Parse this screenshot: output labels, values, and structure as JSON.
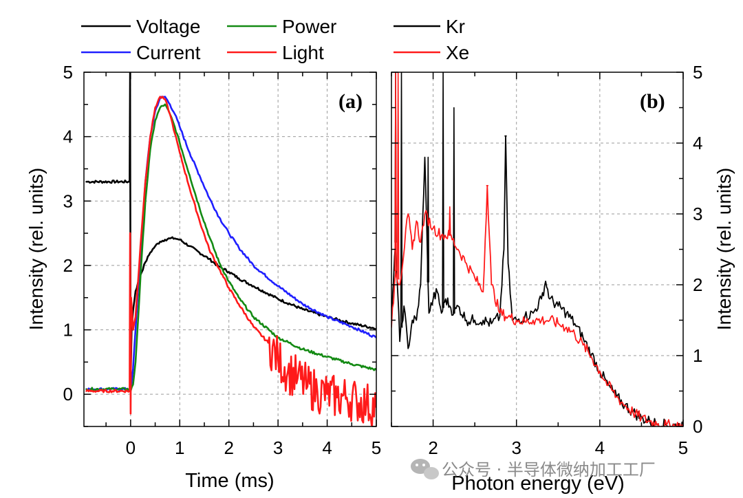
{
  "legend": {
    "left": [
      {
        "label": "Voltage",
        "color": "#000000"
      },
      {
        "label": "Power",
        "color": "#138a13"
      },
      {
        "label": "Current",
        "color": "#1f1fff"
      },
      {
        "label": "Light",
        "color": "#ff1a1a"
      }
    ],
    "right": [
      {
        "label": "Kr",
        "color": "#000000"
      },
      {
        "label": "Xe",
        "color": "#ff1a1a"
      }
    ]
  },
  "watermark": {
    "text": "公众号 · 半导体微纳加工工厂"
  },
  "chart_data": [
    {
      "type": "line",
      "panel_label": "(a)",
      "xlabel": "Time (ms)",
      "ylabel": "Intensity (rel. units)",
      "xlim": [
        -0.95,
        5
      ],
      "ylim": [
        -0.5,
        5
      ],
      "xticks": [
        0,
        1,
        2,
        3,
        4,
        5
      ],
      "yticks": [
        0,
        1,
        2,
        3,
        4,
        5
      ],
      "grid": true,
      "series": [
        {
          "name": "Voltage",
          "color": "#000000",
          "x": [
            -0.9,
            -0.02,
            -0.01,
            0.0,
            0.02,
            0.05,
            0.1,
            0.2,
            0.3,
            0.4,
            0.5,
            0.6,
            0.7,
            0.8,
            0.9,
            1.0,
            1.2,
            1.4,
            1.6,
            1.8,
            2.0,
            2.2,
            2.5,
            3.0,
            3.5,
            4.0,
            4.5,
            5.0
          ],
          "y": [
            3.3,
            3.3,
            5.0,
            0.2,
            1.0,
            1.3,
            1.6,
            1.85,
            2.05,
            2.2,
            2.3,
            2.37,
            2.4,
            2.42,
            2.42,
            2.4,
            2.3,
            2.2,
            2.1,
            1.98,
            1.9,
            1.8,
            1.68,
            1.48,
            1.32,
            1.2,
            1.1,
            1.02
          ]
        },
        {
          "name": "Current",
          "color": "#1f1fff",
          "x": [
            -0.9,
            -0.02,
            0.0,
            0.05,
            0.1,
            0.2,
            0.3,
            0.4,
            0.5,
            0.6,
            0.7,
            0.8,
            0.9,
            1.0,
            1.2,
            1.4,
            1.6,
            1.8,
            2.0,
            2.2,
            2.5,
            3.0,
            3.5,
            4.0,
            4.5,
            5.0
          ],
          "y": [
            0.08,
            0.08,
            0.05,
            0.4,
            1.0,
            2.2,
            3.3,
            4.0,
            4.4,
            4.6,
            4.62,
            4.5,
            4.35,
            4.15,
            3.75,
            3.4,
            3.05,
            2.75,
            2.5,
            2.28,
            2.0,
            1.68,
            1.4,
            1.2,
            1.05,
            0.88
          ]
        },
        {
          "name": "Power",
          "color": "#138a13",
          "x": [
            -0.9,
            -0.02,
            0.0,
            0.05,
            0.1,
            0.2,
            0.3,
            0.4,
            0.5,
            0.6,
            0.7,
            0.8,
            0.9,
            1.0,
            1.2,
            1.4,
            1.6,
            1.8,
            2.0,
            2.2,
            2.5,
            3.0,
            3.5,
            4.0,
            4.5,
            5.0
          ],
          "y": [
            0.08,
            0.08,
            0.05,
            0.15,
            0.5,
            1.8,
            3.0,
            3.8,
            4.25,
            4.45,
            4.5,
            4.35,
            4.15,
            3.9,
            3.4,
            2.9,
            2.45,
            2.05,
            1.75,
            1.5,
            1.2,
            0.88,
            0.7,
            0.58,
            0.47,
            0.38
          ]
        },
        {
          "name": "Light",
          "color": "#ff1a1a",
          "x": [
            -0.9,
            -0.02,
            -0.01,
            0.0,
            0.01,
            0.05,
            0.1,
            0.2,
            0.3,
            0.4,
            0.5,
            0.6,
            0.7,
            0.8,
            0.9,
            1.0,
            1.2,
            1.4,
            1.6,
            1.8,
            2.0,
            2.2,
            2.5,
            2.8,
            3.0,
            3.2,
            3.4,
            3.6,
            3.8,
            4.0,
            4.2,
            4.4,
            4.6,
            4.8,
            5.0
          ],
          "y": [
            0.05,
            0.05,
            2.5,
            -0.3,
            1.5,
            1.0,
            1.2,
            2.3,
            3.3,
            4.0,
            4.45,
            4.62,
            4.58,
            4.35,
            4.05,
            3.75,
            3.2,
            2.7,
            2.25,
            1.95,
            1.65,
            1.4,
            1.05,
            0.8,
            0.55,
            0.35,
            0.25,
            0.12,
            0.05,
            0.0,
            -0.05,
            -0.05,
            -0.1,
            -0.15,
            -0.2
          ],
          "noise_from_x": 2.8,
          "noise_amplitude": 0.35
        }
      ]
    },
    {
      "type": "line",
      "panel_label": "(b)",
      "xlabel": "Photon energy (eV)",
      "ylabel": "Intensity (rel. units)",
      "xlim": [
        1.5,
        5
      ],
      "ylim": [
        0,
        5
      ],
      "xticks": [
        2,
        3,
        4,
        5
      ],
      "yticks": [
        0,
        1,
        2,
        3,
        4,
        5
      ],
      "grid": true,
      "series": [
        {
          "name": "Kr",
          "color": "#000000",
          "x": [
            1.5,
            1.55,
            1.6,
            1.65,
            1.7,
            1.75,
            1.8,
            1.85,
            1.9,
            1.95,
            2.0,
            2.05,
            2.1,
            2.15,
            2.2,
            2.25,
            2.3,
            2.4,
            2.5,
            2.6,
            2.7,
            2.8,
            2.85,
            2.87,
            2.9,
            2.95,
            3.0,
            3.1,
            3.2,
            3.3,
            3.35,
            3.4,
            3.5,
            3.6,
            3.7,
            3.8,
            3.9,
            4.0,
            4.1,
            4.2,
            4.3,
            4.4,
            4.5,
            4.6,
            4.7,
            4.8,
            5.0
          ],
          "y": [
            1.5,
            2.6,
            1.2,
            1.7,
            1.1,
            1.5,
            1.5,
            2.0,
            3.8,
            1.6,
            1.8,
            1.9,
            1.6,
            1.8,
            1.7,
            1.6,
            1.7,
            1.5,
            1.5,
            1.5,
            1.45,
            1.55,
            2.5,
            4.1,
            2.3,
            1.5,
            1.5,
            1.55,
            1.6,
            1.8,
            2.05,
            1.8,
            1.7,
            1.6,
            1.45,
            1.25,
            1.02,
            0.78,
            0.58,
            0.42,
            0.3,
            0.2,
            0.12,
            0.07,
            0.04,
            0.02,
            0.0
          ],
          "spikes": [
            [
              1.55,
              5.0
            ],
            [
              1.62,
              5.0
            ],
            [
              2.12,
              5.0
            ],
            [
              2.25,
              4.5
            ],
            [
              2.87,
              4.1
            ],
            [
              1.94,
              3.8
            ]
          ]
        },
        {
          "name": "Xe",
          "color": "#ff1a1a",
          "x": [
            1.5,
            1.55,
            1.6,
            1.7,
            1.75,
            1.8,
            1.85,
            1.9,
            2.0,
            2.1,
            2.2,
            2.3,
            2.4,
            2.5,
            2.6,
            2.65,
            2.7,
            2.8,
            2.9,
            3.0,
            3.1,
            3.2,
            3.3,
            3.4,
            3.5,
            3.6,
            3.7,
            3.8,
            3.9,
            4.0,
            4.1,
            4.2,
            4.3,
            4.4,
            4.5,
            4.6,
            4.7,
            4.8,
            5.0
          ],
          "y": [
            1.4,
            2.2,
            2.0,
            3.0,
            2.5,
            2.9,
            2.6,
            3.0,
            2.8,
            2.7,
            2.7,
            2.5,
            2.3,
            2.1,
            1.9,
            3.4,
            2.0,
            1.6,
            1.55,
            1.5,
            1.48,
            1.5,
            1.5,
            1.5,
            1.45,
            1.4,
            1.3,
            1.15,
            0.98,
            0.78,
            0.58,
            0.42,
            0.3,
            0.2,
            0.12,
            0.07,
            0.04,
            0.02,
            0.0
          ],
          "spikes": [
            [
              1.55,
              5.0
            ],
            [
              1.58,
              5.0
            ],
            [
              2.65,
              3.4
            ],
            [
              2.2,
              3.1
            ]
          ]
        }
      ]
    }
  ]
}
